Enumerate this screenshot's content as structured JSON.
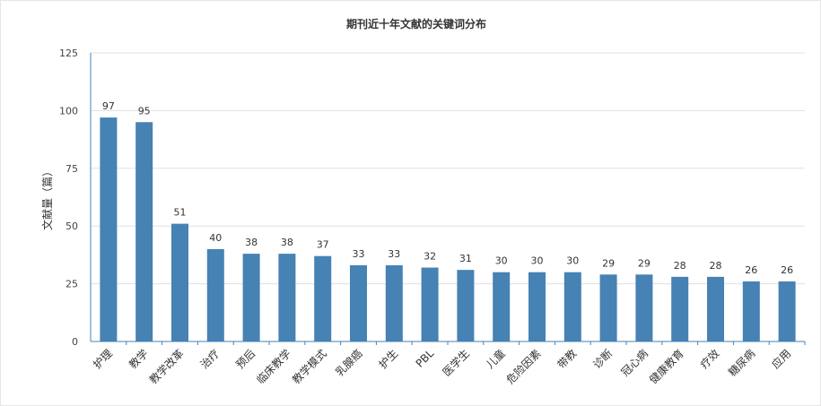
{
  "chart_data": {
    "type": "bar",
    "title": "期刊近十年文献的关键词分布",
    "xlabel": "",
    "ylabel": "文献量（篇）",
    "ylim": [
      0,
      125
    ],
    "yticks": [
      0,
      25,
      50,
      75,
      100,
      125
    ],
    "grid": true,
    "legend": "none",
    "categories": [
      "护理",
      "教学",
      "教学改革",
      "治疗",
      "预后",
      "临床教学",
      "教学模式",
      "乳腺癌",
      "护生",
      "PBL",
      "医学生",
      "儿童",
      "危险因素",
      "带教",
      "诊断",
      "冠心病",
      "健康教育",
      "疗效",
      "糖尿病",
      "应用"
    ],
    "values": [
      97,
      95,
      51,
      40,
      38,
      38,
      37,
      33,
      33,
      32,
      31,
      30,
      30,
      30,
      29,
      29,
      28,
      28,
      26,
      26
    ],
    "colors": {
      "bar": "#4682B4",
      "grid": "#e0e0e0",
      "axis": "#4682B4"
    }
  }
}
